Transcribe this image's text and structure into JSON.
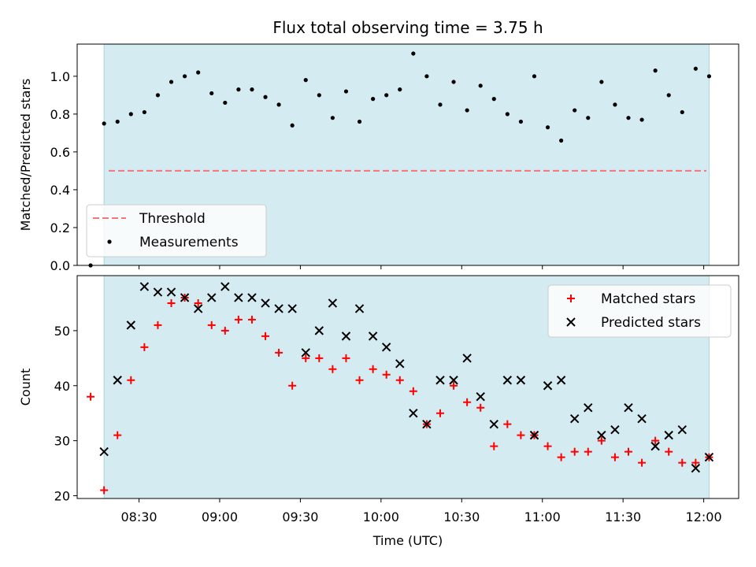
{
  "chart_data": [
    {
      "type": "scatter",
      "title": "Flux total observing time = 3.75 h",
      "xlabel": "",
      "ylabel": "Matched/Predicted stars",
      "ylim": [
        0,
        1.17
      ],
      "yticks": [
        "0.0",
        "0.2",
        "0.4",
        "0.6",
        "0.8",
        "1.0"
      ],
      "xlim": [
        "08:07",
        "12:13"
      ],
      "shaded_span": [
        "08:17",
        "12:02"
      ],
      "shade_color": "#d4ebf1",
      "threshold": {
        "name": "Threshold",
        "value": 0.5,
        "color": "#f07878",
        "style": "dashed"
      },
      "legend": {
        "position": "lower-left",
        "entries": [
          "Threshold",
          "Measurements"
        ]
      },
      "series": [
        {
          "name": "Measurements",
          "marker": "dot",
          "color": "#000000",
          "x": [
            "08:12",
            "08:17",
            "08:22",
            "08:27",
            "08:32",
            "08:37",
            "08:42",
            "08:47",
            "08:52",
            "08:57",
            "09:02",
            "09:07",
            "09:12",
            "09:17",
            "09:22",
            "09:27",
            "09:32",
            "09:37",
            "09:42",
            "09:47",
            "09:52",
            "09:57",
            "10:02",
            "10:07",
            "10:12",
            "10:17",
            "10:22",
            "10:27",
            "10:32",
            "10:37",
            "10:42",
            "10:47",
            "10:52",
            "10:57",
            "11:02",
            "11:07",
            "11:12",
            "11:17",
            "11:22",
            "11:27",
            "11:32",
            "11:37",
            "11:42",
            "11:47",
            "11:52",
            "11:57",
            "12:02"
          ],
          "y": [
            0.0,
            0.75,
            0.76,
            0.8,
            0.81,
            0.9,
            0.97,
            1.0,
            1.02,
            0.91,
            0.86,
            0.93,
            0.93,
            0.89,
            0.85,
            0.74,
            0.98,
            0.9,
            0.78,
            0.92,
            0.76,
            0.88,
            0.9,
            0.93,
            1.12,
            1.0,
            0.85,
            0.97,
            0.82,
            0.95,
            0.88,
            0.8,
            0.76,
            1.0,
            0.73,
            0.66,
            0.82,
            0.78,
            0.97,
            0.85,
            0.78,
            0.77,
            1.03,
            0.9,
            0.81,
            1.04,
            1.0
          ]
        }
      ]
    },
    {
      "type": "scatter",
      "title": "",
      "xlabel": "Time (UTC)",
      "ylabel": "Count",
      "ylim": [
        19.5,
        60
      ],
      "yticks": [
        "20",
        "30",
        "40",
        "50"
      ],
      "xlim": [
        "08:07",
        "12:13"
      ],
      "xticks": [
        "08:30",
        "09:00",
        "09:30",
        "10:00",
        "10:30",
        "11:00",
        "11:30",
        "12:00"
      ],
      "shaded_span": [
        "08:17",
        "12:02"
      ],
      "shade_color": "#d4ebf1",
      "legend": {
        "position": "upper-right",
        "entries": [
          "Matched stars",
          "Predicted stars"
        ]
      },
      "series": [
        {
          "name": "Matched stars",
          "marker": "plus",
          "color": "#ff0000",
          "x": [
            "08:12",
            "08:17",
            "08:22",
            "08:27",
            "08:32",
            "08:37",
            "08:42",
            "08:47",
            "08:52",
            "08:57",
            "09:02",
            "09:07",
            "09:12",
            "09:17",
            "09:22",
            "09:27",
            "09:32",
            "09:37",
            "09:42",
            "09:47",
            "09:52",
            "09:57",
            "10:02",
            "10:07",
            "10:12",
            "10:17",
            "10:22",
            "10:27",
            "10:32",
            "10:37",
            "10:42",
            "10:47",
            "10:52",
            "10:57",
            "11:02",
            "11:07",
            "11:12",
            "11:17",
            "11:22",
            "11:27",
            "11:32",
            "11:37",
            "11:42",
            "11:47",
            "11:52",
            "11:57",
            "12:02"
          ],
          "y": [
            38,
            21,
            31,
            41,
            47,
            51,
            55,
            56,
            55,
            51,
            50,
            52,
            52,
            49,
            46,
            40,
            45,
            45,
            43,
            45,
            41,
            43,
            42,
            41,
            39,
            33,
            35,
            40,
            37,
            36,
            29,
            33,
            31,
            31,
            29,
            27,
            28,
            28,
            30,
            27,
            28,
            26,
            30,
            28,
            26,
            26,
            27
          ]
        },
        {
          "name": "Predicted stars",
          "marker": "x",
          "color": "#000000",
          "x": [
            "08:17",
            "08:22",
            "08:27",
            "08:32",
            "08:37",
            "08:42",
            "08:47",
            "08:52",
            "08:57",
            "09:02",
            "09:07",
            "09:12",
            "09:17",
            "09:22",
            "09:27",
            "09:32",
            "09:37",
            "09:42",
            "09:47",
            "09:52",
            "09:57",
            "10:02",
            "10:07",
            "10:12",
            "10:17",
            "10:22",
            "10:27",
            "10:32",
            "10:37",
            "10:42",
            "10:47",
            "10:52",
            "10:57",
            "11:02",
            "11:07",
            "11:12",
            "11:17",
            "11:22",
            "11:27",
            "11:32",
            "11:37",
            "11:42",
            "11:47",
            "11:52",
            "11:57",
            "12:02"
          ],
          "y": [
            28,
            41,
            51,
            58,
            57,
            57,
            56,
            54,
            56,
            58,
            56,
            56,
            55,
            54,
            54,
            46,
            50,
            55,
            49,
            54,
            49,
            47,
            44,
            35,
            33,
            41,
            41,
            45,
            38,
            33,
            41,
            41,
            31,
            40,
            41,
            34,
            36,
            31,
            32,
            36,
            34,
            29,
            31,
            32,
            25,
            27
          ]
        }
      ]
    }
  ]
}
